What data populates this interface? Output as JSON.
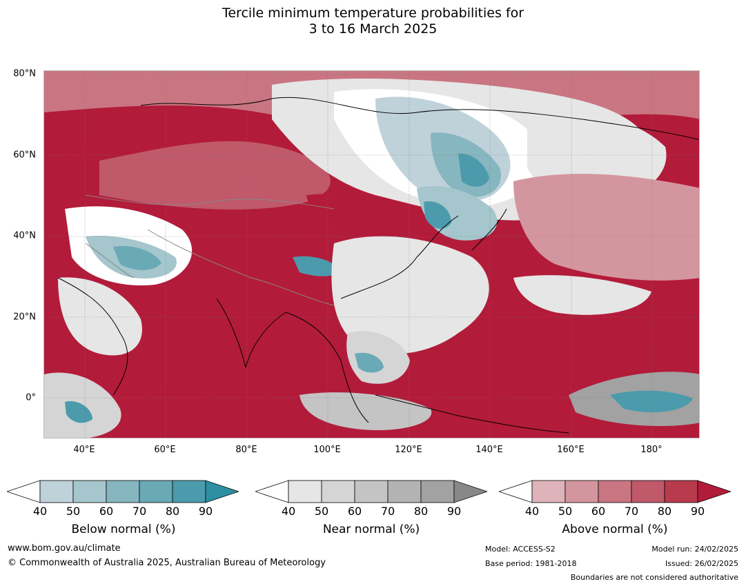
{
  "title_line1": "Tercile minimum temperature probabilities for",
  "title_line2": "3 to 16 March 2025",
  "lat_ticks": [
    "80°N",
    "60°N",
    "40°N",
    "20°N",
    "0°"
  ],
  "lon_ticks": [
    "40°E",
    "60°E",
    "80°E",
    "100°E",
    "120°E",
    "140°E",
    "160°E",
    "180°"
  ],
  "colorbars": [
    {
      "label": "Below normal (%)",
      "ticks": [
        "40",
        "50",
        "60",
        "70",
        "80",
        "90"
      ],
      "colors": [
        "#bfd2d9",
        "#a4c6cc",
        "#86b6bf",
        "#6aa9b6",
        "#4b9bac",
        "#2e8fa3"
      ]
    },
    {
      "label": "Near normal (%)",
      "ticks": [
        "40",
        "50",
        "60",
        "70",
        "80",
        "90"
      ],
      "colors": [
        "#e6e6e6",
        "#d5d5d5",
        "#c4c4c4",
        "#b3b3b3",
        "#a2a2a2",
        "#888888"
      ]
    },
    {
      "label": "Above normal (%)",
      "ticks": [
        "40",
        "50",
        "60",
        "70",
        "80",
        "90"
      ],
      "colors": [
        "#deb3b9",
        "#d4969e",
        "#c97682",
        "#c0596a",
        "#b73a4d",
        "#b31b3a"
      ]
    }
  ],
  "footer": {
    "website": "www.bom.gov.au/climate",
    "copyright": "© Commonwealth of Australia 2025, Australian Bureau of Meteorology",
    "model": "Model: ACCESS-S2",
    "base_period": "Base period: 1981-2018",
    "model_run": "Model run: 24/02/2025",
    "issued": "Issued: 26/02/2025",
    "disclaimer": "Boundaries are not considered authoritative"
  }
}
